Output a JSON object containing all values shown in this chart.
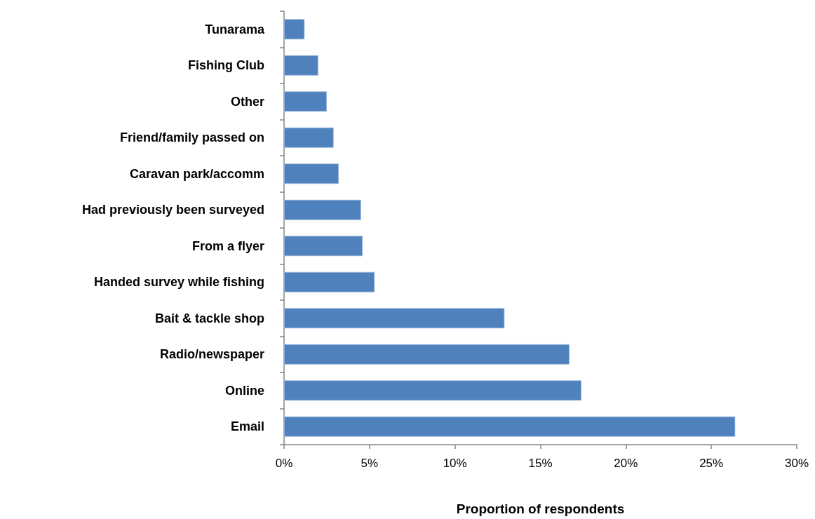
{
  "chart_data": {
    "type": "bar",
    "orientation": "horizontal",
    "categories": [
      "Tunarama",
      "Fishing Club",
      "Other",
      "Friend/family passed on",
      "Caravan park/accomm",
      "Had previously been surveyed",
      "From a flyer",
      "Handed survey while fishing",
      "Bait & tackle shop",
      "Radio/newspaper",
      "Online",
      "Email"
    ],
    "values": [
      1.2,
      2.0,
      2.5,
      2.9,
      3.2,
      4.5,
      4.6,
      5.3,
      12.9,
      16.7,
      17.4,
      26.4
    ],
    "color": "#4f81bd",
    "xlim": [
      0,
      30
    ],
    "xticks": [
      {
        "value": 0,
        "label": "0%"
      },
      {
        "value": 5,
        "label": "5%"
      },
      {
        "value": 10,
        "label": "10%"
      },
      {
        "value": 15,
        "label": "15%"
      },
      {
        "value": 20,
        "label": "20%"
      },
      {
        "value": 25,
        "label": "25%"
      },
      {
        "value": 30,
        "label": "30%"
      }
    ],
    "xlabel": "Proportion of respondents",
    "grid": false
  }
}
